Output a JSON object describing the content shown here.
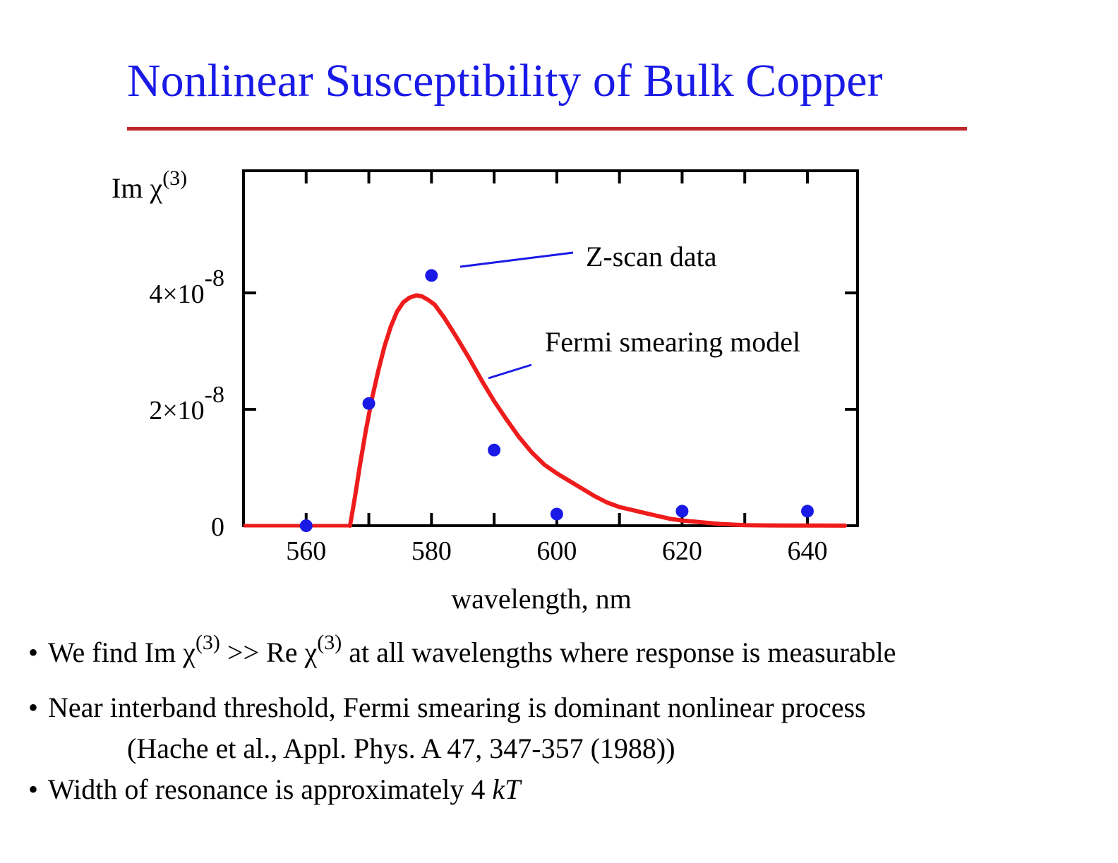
{
  "title": "Nonlinear Susceptibility of Bulk Copper",
  "colors": {
    "title": "#1a1ae6",
    "rule": "#c0272d",
    "model_curve": "#ee1c1c",
    "data_points": "#1a1ae6"
  },
  "chart_data": {
    "type": "line",
    "ylabel": "Im χ",
    "ylabel_superscript": "(3)",
    "xlabel": "wavelength, nm",
    "xlim": [
      550,
      648
    ],
    "ylim": [
      0,
      6.1e-08
    ],
    "xticks": [
      560,
      580,
      600,
      620,
      640
    ],
    "xtick_labels": [
      "560",
      "580",
      "600",
      "620",
      "640"
    ],
    "yticks": [
      {
        "value": 0,
        "label": "0",
        "exponent": ""
      },
      {
        "value": 2e-08,
        "label": "2×10",
        "exponent": "-8"
      },
      {
        "value": 4e-08,
        "label": "4×10",
        "exponent": "-8"
      }
    ],
    "minor_xticks": [
      550,
      560,
      570,
      580,
      590,
      600,
      610,
      620,
      630,
      640
    ],
    "grid": false,
    "series": [
      {
        "name": "Z-scan data",
        "kind": "scatter",
        "x": [
          560,
          570,
          580,
          590,
          600,
          620,
          640
        ],
        "y": [
          0.0,
          2.1e-08,
          4.3e-08,
          1.3e-08,
          2e-09,
          2.5e-09,
          2.5e-09
        ]
      },
      {
        "name": "Fermi smearing model",
        "kind": "line",
        "x": [
          567,
          567.8,
          568.6,
          569.5,
          570.5,
          571.5,
          572.5,
          573.5,
          574.5,
          575.5,
          576.5,
          577.6,
          578.5,
          579.5,
          580.5,
          582,
          584,
          586,
          588,
          590,
          592,
          594,
          596,
          598,
          600,
          602,
          604,
          606,
          608,
          610,
          612,
          614,
          616,
          618,
          620,
          622,
          624,
          626,
          628,
          630,
          634,
          638,
          642,
          646
        ],
        "y": [
          0.0,
          5e-09,
          1.05e-08,
          1.62e-08,
          2.18e-08,
          2.66e-08,
          3.08e-08,
          3.42e-08,
          3.68e-08,
          3.84e-08,
          3.92e-08,
          3.96e-08,
          3.94e-08,
          3.88e-08,
          3.8e-08,
          3.58e-08,
          3.24e-08,
          2.88e-08,
          2.5e-08,
          2.14e-08,
          1.82e-08,
          1.52e-08,
          1.26e-08,
          1.05e-08,
          9e-09,
          7.7e-09,
          6.4e-09,
          5.1e-09,
          4e-09,
          3.2e-09,
          2.7e-09,
          2.2e-09,
          1.7e-09,
          1.2e-09,
          9e-10,
          7e-10,
          5e-10,
          3e-10,
          2e-10,
          1e-10,
          5e-11,
          3e-11,
          2e-11,
          1e-11
        ]
      }
    ],
    "annotations": [
      {
        "text": "Z-scan data",
        "series": "Z-scan data"
      },
      {
        "text": "Fermi smearing model",
        "series": "Fermi smearing model"
      }
    ]
  },
  "bullets": {
    "b1_part1": "We find Im χ",
    "b1_sup1": "(3)",
    "b1_part2": " >> Re χ",
    "b1_sup2": "(3)",
    "b1_part3": " at all wavelengths where response is measurable",
    "b2_main": "Near interband threshold, Fermi smearing is dominant nonlinear process",
    "b2_ref": "(Hache et al., Appl. Phys. A 47, 347-357 (1988))",
    "b3_main": "Width of resonance is approximately 4 ",
    "b3_italic": "kT",
    "bullet_char": "•"
  }
}
